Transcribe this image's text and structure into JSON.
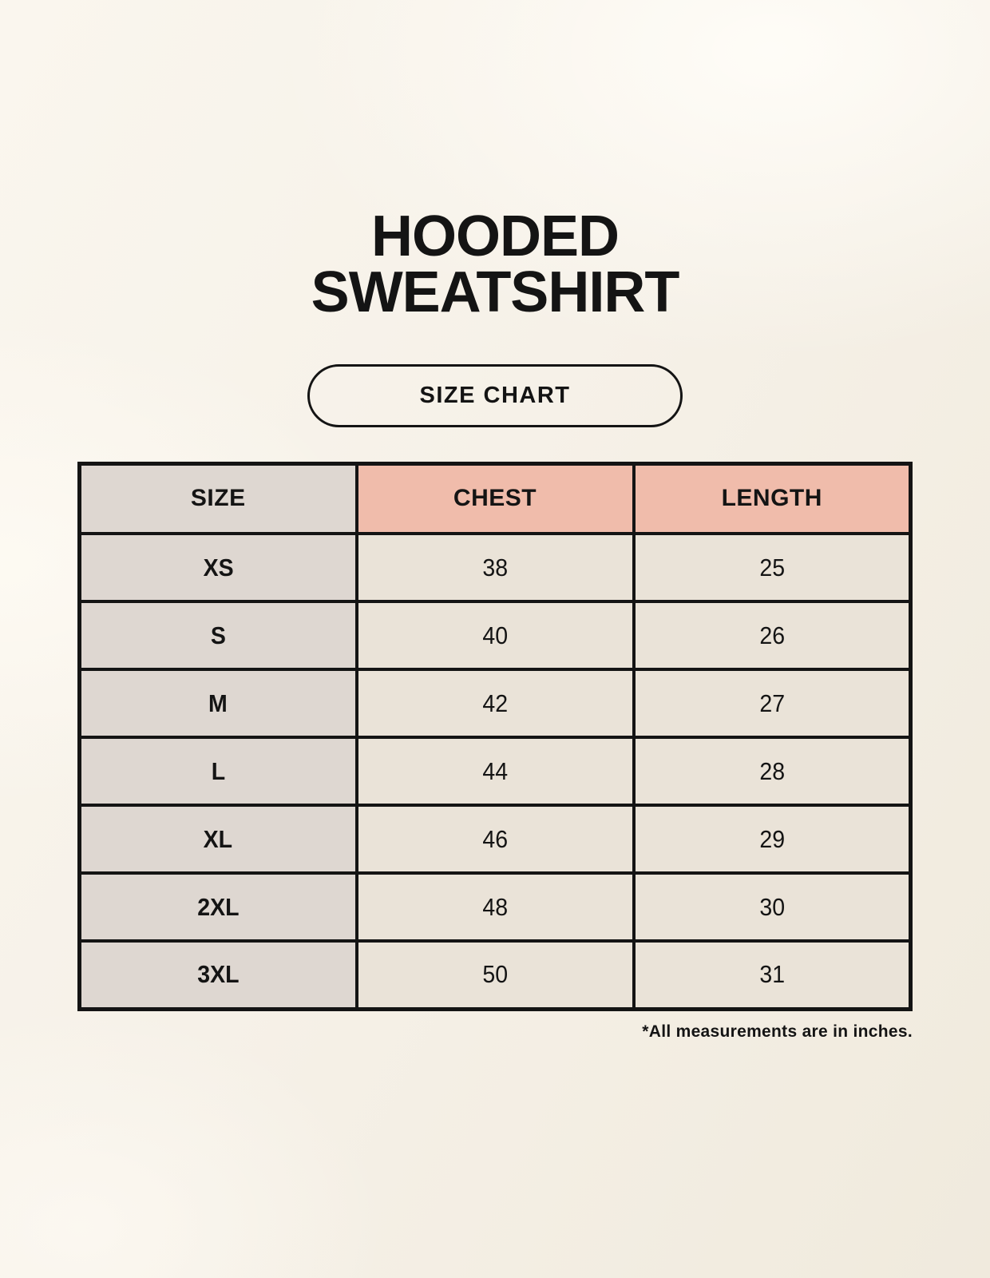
{
  "title": {
    "line1": "HOODED",
    "line2": "SWEATSHIRT"
  },
  "size_chart_button": {
    "label": "SIZE CHART"
  },
  "table": {
    "headers": [
      "SIZE",
      "CHEST",
      "LENGTH"
    ],
    "rows": [
      {
        "size": "XS",
        "chest": "38",
        "length": "25"
      },
      {
        "size": "S",
        "chest": "40",
        "length": "26"
      },
      {
        "size": "M",
        "chest": "42",
        "length": "27"
      },
      {
        "size": "L",
        "chest": "44",
        "length": "28"
      },
      {
        "size": "XL",
        "chest": "46",
        "length": "29"
      },
      {
        "size": "2XL",
        "chest": "48",
        "length": "30"
      },
      {
        "size": "3XL",
        "chest": "50",
        "length": "31"
      }
    ]
  },
  "footnote": "*All measurements are in inches.",
  "colors": {
    "background": "#f5f0e6",
    "header_accent": "#f0bcab",
    "size_column": "#ded7d1",
    "data_cell": "#eae3d8",
    "border": "#141414",
    "text": "#141414"
  },
  "chart_data": {
    "type": "table",
    "title": "HOODED SWEATSHIRT",
    "subtitle": "SIZE CHART",
    "columns": [
      "SIZE",
      "CHEST",
      "LENGTH"
    ],
    "rows": [
      [
        "XS",
        38,
        25
      ],
      [
        "S",
        40,
        26
      ],
      [
        "M",
        42,
        27
      ],
      [
        "L",
        44,
        28
      ],
      [
        "XL",
        46,
        29
      ],
      [
        "2XL",
        48,
        30
      ],
      [
        "3XL",
        50,
        31
      ]
    ],
    "note": "*All measurements are in inches."
  }
}
